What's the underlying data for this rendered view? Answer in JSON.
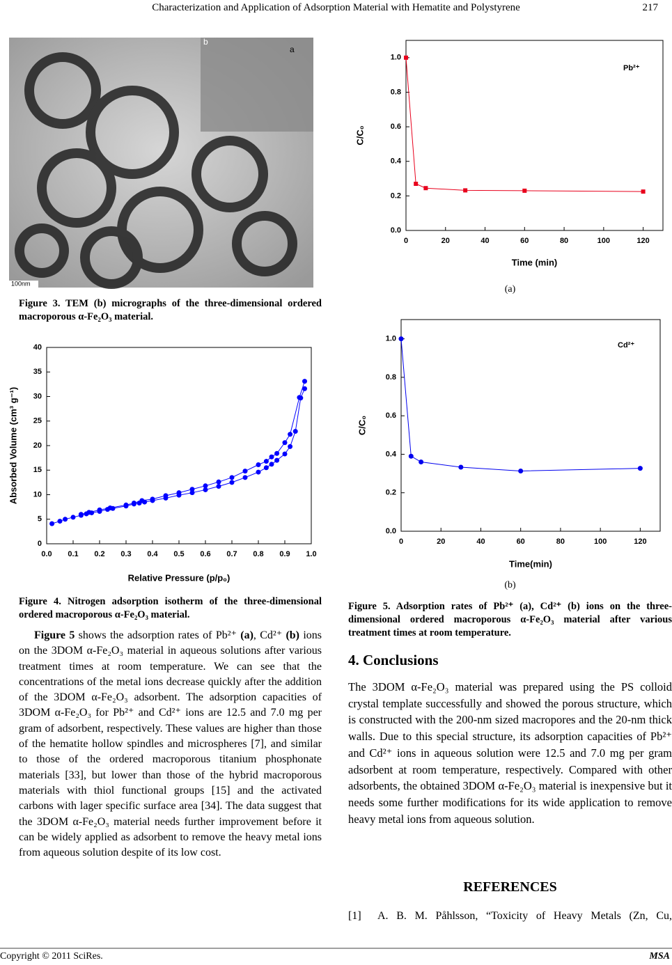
{
  "header": {
    "title": "Characterization and Application of Adsorption Material with Hematite and Polystyrene",
    "page_number": "217"
  },
  "figure3": {
    "scale_label": "100nm",
    "panel_b": "b",
    "panel_a": "a",
    "caption": "Figure 3. TEM (b) micrographs of the three-dimensional ordered macroporous α-Fe₂O₃ material."
  },
  "figure4_caption": "Figure 4. Nitrogen adsorption isotherm of the three-dimensional ordered macroporous α-Fe₂O₃ material.",
  "body_paragraph": [
    "Figure 5",
    " shows the adsorption rates of Pb²⁺ ",
    "(a)",
    ", Cd²⁺ ",
    "(b)",
    " ions on the 3DOM α-Fe₂O₃ material in aqueous solutions after various treatment times at room temperature. We can see that the concentrations of the metal ions decrease quickly after the addition of the 3DOM α-Fe₂O₃ adsorbent. The adsorption capacities of 3DOM α-Fe₂O₃ for Pb²⁺ and Cd²⁺ ions are 12.5 and 7.0 mg per gram of adsorbent, respectively. These values are higher than those of the hematite hollow spindles and microspheres [7], and similar to those of the ordered macroporous titanium phosphonate materials [33], but lower than those of the hybrid macroporous materials with thiol functional groups [15] and the activated carbons with lager specific surface area [34]. The data suggest that the 3DOM α-Fe₂O₃ material needs further improvement before it can be widely applied as adsorbent to remove the heavy metal ions from aqueous solution despite of its low cost."
  ],
  "figure5": {
    "label_a": "(a)",
    "label_b": "(b)",
    "caption": "Figure 5. Adsorption rates of Pb²⁺ (a), Cd²⁺ (b) ions on the three-dimensional ordered macroporous α-Fe₂O₃ material after various treatment times at room temperature."
  },
  "conclusions": {
    "heading": "4. Conclusions",
    "text": "The 3DOM α-Fe₂O₃ material was prepared using the PS colloid crystal template successfully and showed the porous structure, which is constructed with the 200-nm sized macropores and the 20-nm thick walls. Due to this special structure, its adsorption capacities of Pb²⁺ and Cd²⁺ ions in aqueous solution were 12.5 and 7.0 mg per gram adsorbent at room temperature, respectively. Compared with other adsorbents, the obtained 3DOM α-Fe₂O₃ material is inexpensive but it needs some further modifications for its wide application to remove heavy metal ions from aqueous solution."
  },
  "references": {
    "heading": "REFERENCES",
    "items": [
      {
        "number": "[1]",
        "text": "A. B. M. Påhlsson, “Toxicity of Heavy Metals (Zn, Cu,"
      }
    ]
  },
  "footer": {
    "copyright": "Copyright © 2011 SciRes.",
    "journal": "MSA"
  },
  "chart_data": [
    {
      "type": "line",
      "marker": "circle",
      "x_label": "Relative Pressure (p/p₀)",
      "y_label": "Absorbed Volume (cm³ g⁻¹)",
      "xlim": [
        0,
        1
      ],
      "ylim": [
        0,
        40
      ],
      "xticks": [
        {
          "value": 0,
          "label": "0.0"
        },
        {
          "value": 0.1,
          "label": "0.1"
        },
        {
          "value": 0.2,
          "label": "0.2"
        },
        {
          "value": 0.3,
          "label": "0.3"
        },
        {
          "value": 0.4,
          "label": "0.4"
        },
        {
          "value": 0.5,
          "label": "0.5"
        },
        {
          "value": 0.6,
          "label": "0.6"
        },
        {
          "value": 0.7,
          "label": "0.7"
        },
        {
          "value": 0.8,
          "label": "0.8"
        },
        {
          "value": 0.9,
          "label": "0.9"
        },
        {
          "value": 1,
          "label": "1.0"
        }
      ],
      "yticks": [
        0,
        5,
        10,
        15,
        20,
        25,
        30,
        35,
        40
      ],
      "series": [
        {
          "color": "#0000ff",
          "x": [
            0.02,
            0.05,
            0.07,
            0.1,
            0.13,
            0.15,
            0.17,
            0.2,
            0.23,
            0.25,
            0.3,
            0.33,
            0.35,
            0.37,
            0.4,
            0.45,
            0.5,
            0.55,
            0.6,
            0.65,
            0.7,
            0.75,
            0.8,
            0.83,
            0.85,
            0.87,
            0.9,
            0.92,
            0.94,
            0.96,
            0.975
          ],
          "values": [
            4.1,
            4.6,
            5.0,
            5.4,
            5.8,
            6.1,
            6.3,
            6.6,
            7.0,
            7.2,
            7.7,
            8.1,
            8.3,
            8.5,
            8.8,
            9.3,
            9.9,
            10.4,
            11.0,
            11.7,
            12.5,
            13.5,
            14.6,
            15.5,
            16.2,
            17.0,
            18.3,
            19.8,
            22.9,
            29.7,
            31.6
          ]
        },
        {
          "color": "#0000ff",
          "x": [
            0.975,
            0.955,
            0.92,
            0.9,
            0.87,
            0.85,
            0.83,
            0.8,
            0.75,
            0.7,
            0.65,
            0.6,
            0.55,
            0.5,
            0.45,
            0.4,
            0.36,
            0.33,
            0.3,
            0.24,
            0.2,
            0.16,
            0.13
          ],
          "values": [
            33.1,
            29.8,
            22.3,
            20.6,
            18.4,
            17.7,
            16.8,
            16.1,
            14.8,
            13.5,
            12.6,
            11.8,
            11.1,
            10.4,
            9.8,
            9.1,
            8.8,
            8.3,
            7.9,
            7.3,
            6.9,
            6.4,
            6.0
          ]
        }
      ]
    },
    {
      "type": "line",
      "marker": "square",
      "x_label": "Time (min)",
      "y_label": "C/C₀",
      "annotation": "Pb²⁺",
      "x": [
        0,
        5,
        10,
        30,
        60,
        120
      ],
      "xlim": [
        0,
        130
      ],
      "ylim": [
        0,
        1.1
      ],
      "xticks": [
        0,
        20,
        40,
        60,
        80,
        100,
        120
      ],
      "yticks": [
        {
          "value": 0,
          "label": "0.0"
        },
        {
          "value": 0.2,
          "label": "0.2"
        },
        {
          "value": 0.4,
          "label": "0.4"
        },
        {
          "value": 0.6,
          "label": "0.6"
        },
        {
          "value": 0.8,
          "label": "0.8"
        },
        {
          "value": 1,
          "label": "1.0"
        }
      ],
      "series": [
        {
          "color": "#e8001c",
          "values": [
            1.0,
            0.27,
            0.245,
            0.232,
            0.23,
            0.225
          ]
        }
      ]
    },
    {
      "type": "line",
      "marker": "circle",
      "x_label": "Time(min)",
      "y_label": "C/C₀",
      "annotation": "Cd²⁺",
      "x": [
        0,
        5,
        10,
        30,
        60,
        120
      ],
      "xlim": [
        0,
        130
      ],
      "ylim": [
        0,
        1.1
      ],
      "xticks": [
        0,
        20,
        40,
        60,
        80,
        100,
        120
      ],
      "yticks": [
        {
          "value": 0,
          "label": "0.0"
        },
        {
          "value": 0.2,
          "label": "0.2"
        },
        {
          "value": 0.4,
          "label": "0.4"
        },
        {
          "value": 0.6,
          "label": "0.6"
        },
        {
          "value": 0.8,
          "label": "0.8"
        },
        {
          "value": 1,
          "label": "1.0"
        }
      ],
      "series": [
        {
          "color": "#0000ee",
          "values": [
            1.0,
            0.39,
            0.36,
            0.333,
            0.313,
            0.327
          ]
        }
      ]
    }
  ]
}
